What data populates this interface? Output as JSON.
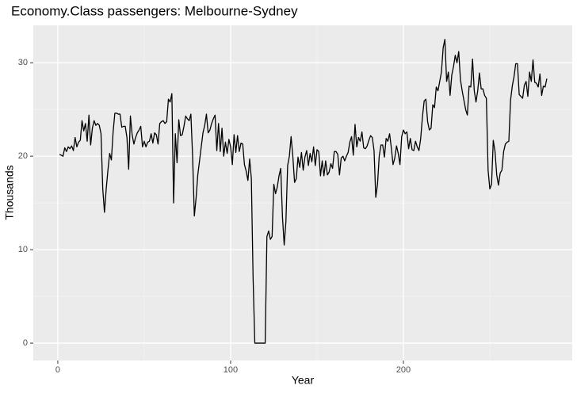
{
  "chart_data": {
    "type": "line",
    "title": "Economy.Class passengers: Melbourne-Sydney",
    "xlabel": "Year",
    "ylabel": "Thousands",
    "xlim": [
      -14.2,
      297.7
    ],
    "ylim": [
      -1.86,
      34.0
    ],
    "xticks": [
      0,
      100,
      200
    ],
    "yticks": [
      0,
      10,
      20,
      30
    ],
    "grid": true,
    "x": [
      1,
      2,
      3,
      4,
      5,
      6,
      7,
      8,
      9,
      10,
      11,
      12,
      13,
      14,
      15,
      16,
      17,
      18,
      19,
      20,
      21,
      22,
      23,
      24,
      25,
      26,
      27,
      28,
      29,
      30,
      31,
      32,
      33,
      34,
      35,
      36,
      37,
      38,
      39,
      40,
      41,
      42,
      43,
      44,
      45,
      46,
      47,
      48,
      49,
      50,
      51,
      52,
      53,
      54,
      55,
      56,
      57,
      58,
      59,
      60,
      61,
      62,
      63,
      64,
      65,
      66,
      67,
      68,
      69,
      70,
      71,
      72,
      73,
      74,
      75,
      76,
      77,
      78,
      79,
      80,
      81,
      82,
      83,
      84,
      85,
      86,
      87,
      88,
      89,
      90,
      91,
      92,
      93,
      94,
      95,
      96,
      97,
      98,
      99,
      100,
      101,
      102,
      103,
      104,
      105,
      106,
      107,
      108,
      109,
      110,
      111,
      112,
      113,
      114,
      115,
      116,
      117,
      118,
      119,
      120,
      121,
      122,
      123,
      124,
      125,
      126,
      127,
      128,
      129,
      130,
      131,
      132,
      133,
      134,
      135,
      136,
      137,
      138,
      139,
      140,
      141,
      142,
      143,
      144,
      145,
      146,
      147,
      148,
      149,
      150,
      151,
      152,
      153,
      154,
      155,
      156,
      157,
      158,
      159,
      160,
      161,
      162,
      163,
      164,
      165,
      166,
      167,
      168,
      169,
      170,
      171,
      172,
      173,
      174,
      175,
      176,
      177,
      178,
      179,
      180,
      181,
      182,
      183,
      184,
      185,
      186,
      187,
      188,
      189,
      190,
      191,
      192,
      193,
      194,
      195,
      196,
      197,
      198,
      199,
      200,
      201,
      202,
      203,
      204,
      205,
      206,
      207,
      208,
      209,
      210,
      211,
      212,
      213,
      214,
      215,
      216,
      217,
      218,
      219,
      220,
      221,
      222,
      223,
      224,
      225,
      226,
      227,
      228,
      229,
      230,
      231,
      232,
      233,
      234,
      235,
      236,
      237,
      238,
      239,
      240,
      241,
      242,
      243,
      244,
      245,
      246,
      247,
      248,
      249,
      250,
      251,
      252,
      253,
      254,
      255,
      256,
      257,
      258,
      259,
      260,
      261,
      262,
      263,
      264,
      265,
      266,
      267,
      268,
      269,
      270,
      271,
      272,
      273,
      274,
      275,
      276,
      277,
      278,
      279,
      280,
      281,
      282,
      283
    ],
    "series": [
      {
        "color": "#000000",
        "values": [
          20.2,
          20.1,
          20.0,
          20.9,
          20.5,
          21.0,
          20.8,
          21.1,
          20.6,
          22.0,
          21.0,
          21.5,
          21.7,
          23.8,
          22.7,
          23.5,
          21.6,
          24.4,
          21.2,
          23.0,
          23.8,
          23.3,
          23.5,
          23.3,
          22.4,
          16.5,
          14.0,
          16.5,
          18.5,
          20.3,
          19.6,
          22.6,
          24.6,
          24.6,
          24.5,
          24.5,
          23.1,
          23.2,
          23.2,
          22.0,
          18.6,
          24.3,
          22.3,
          21.3,
          22.0,
          22.5,
          22.8,
          23.2,
          21.0,
          21.6,
          21.0,
          21.5,
          21.6,
          22.4,
          21.4,
          22.5,
          22.3,
          21.3,
          23.5,
          23.7,
          23.8,
          23.5,
          23.7,
          26.1,
          25.8,
          26.7,
          15.0,
          22.4,
          19.3,
          23.9,
          22.2,
          22.3,
          23.2,
          24.3,
          24.0,
          23.8,
          24.5,
          20.0,
          13.6,
          15.5,
          18.0,
          19.5,
          21.0,
          22.5,
          23.3,
          24.5,
          22.5,
          22.8,
          23.5,
          24.0,
          24.4,
          20.6,
          23.5,
          20.5,
          23.0,
          20.0,
          21.5,
          20.3,
          21.8,
          21.0,
          19.1,
          22.3,
          20.4,
          22.2,
          20.5,
          21.4,
          21.3,
          19.1,
          18.4,
          17.4,
          19.7,
          17.6,
          7.0,
          0,
          0,
          0,
          0,
          0,
          0,
          0,
          11.4,
          12.0,
          11.1,
          11.4,
          17.0,
          16.0,
          16.7,
          17.9,
          18.7,
          13.5,
          10.5,
          13.0,
          19.0,
          20.0,
          22.1,
          20.0,
          17.2,
          17.6,
          19.9,
          18.8,
          20.4,
          18.5,
          19.9,
          20.6,
          19.0,
          20.3,
          19.4,
          21.0,
          19.0,
          20.7,
          20.5,
          17.9,
          19.5,
          17.9,
          19.5,
          18.0,
          18.3,
          19.2,
          18.7,
          20.5,
          20.5,
          20.2,
          18.0,
          19.8,
          20.0,
          19.5,
          20.0,
          20.4,
          21.5,
          22.1,
          20.1,
          23.4,
          21.0,
          22.0,
          21.6,
          22.6,
          20.9,
          20.8,
          21.1,
          21.7,
          22.2,
          22.0,
          20.6,
          15.6,
          17.0,
          20.0,
          21.2,
          21.2,
          19.9,
          21.9,
          21.6,
          22.4,
          20.9,
          19.1,
          19.8,
          21.1,
          20.3,
          19.1,
          22.1,
          22.8,
          22.4,
          22.6,
          20.8,
          21.9,
          20.7,
          20.6,
          21.6,
          21.0,
          20.6,
          21.9,
          24.2,
          25.9,
          26.1,
          23.7,
          22.8,
          23.0,
          25.5,
          25.2,
          27.4,
          27.0,
          28.0,
          29.0,
          31.6,
          32.5,
          28.0,
          29.0,
          26.5,
          28.7,
          29.6,
          30.8,
          30.0,
          31.2,
          28.2,
          27.0,
          26.0,
          25.0,
          24.4,
          27.5,
          27.4,
          30.4,
          27.0,
          25.8,
          27.0,
          28.9,
          27.2,
          27.2,
          26.5,
          26.2,
          18.5,
          16.5,
          17.0,
          21.7,
          20.5,
          18.0,
          16.9,
          18.2,
          18.5,
          20.5,
          21.3,
          21.5,
          21.6,
          26.0,
          27.5,
          28.5,
          29.9,
          29.9,
          26.6,
          26.4,
          26.2,
          27.6,
          28.0,
          26.4,
          29.0,
          28.0,
          30.3,
          27.9,
          27.8,
          27.4,
          28.8,
          26.5,
          27.5,
          27.4,
          28.3
        ]
      }
    ]
  }
}
